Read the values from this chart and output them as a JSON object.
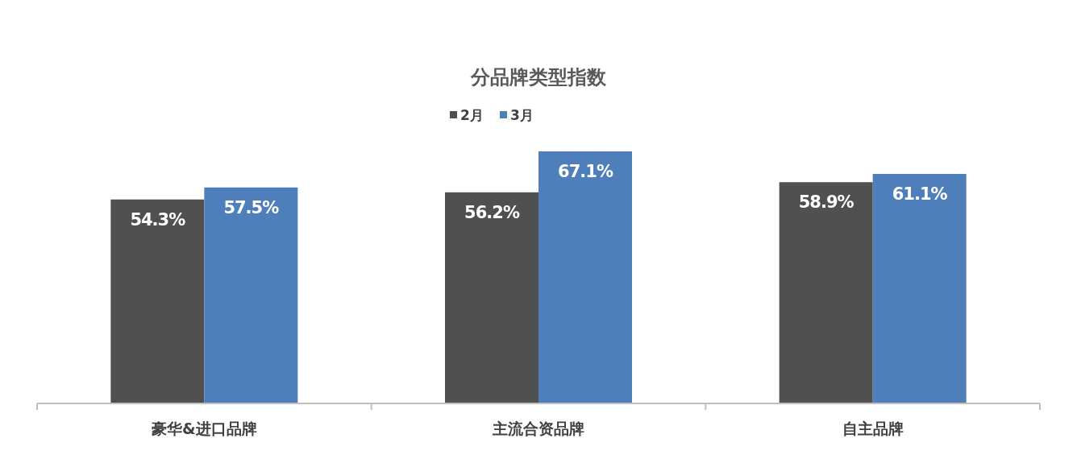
{
  "chart_data": {
    "type": "bar",
    "title": "分品牌类型指数",
    "categories": [
      "豪华&进口品牌",
      "主流合资品牌",
      "自主品牌"
    ],
    "legend": "top",
    "series": [
      {
        "name": "2月",
        "color": "#505050",
        "values": [
          54.3,
          56.2,
          58.9
        ],
        "value_labels": [
          "54.3%",
          "56.2%",
          "58.9%"
        ]
      },
      {
        "name": "3月",
        "color": "#4e7fba",
        "values": [
          57.5,
          67.1,
          61.1
        ],
        "value_labels": [
          "57.5%",
          "67.1%",
          "61.1%"
        ]
      }
    ]
  }
}
